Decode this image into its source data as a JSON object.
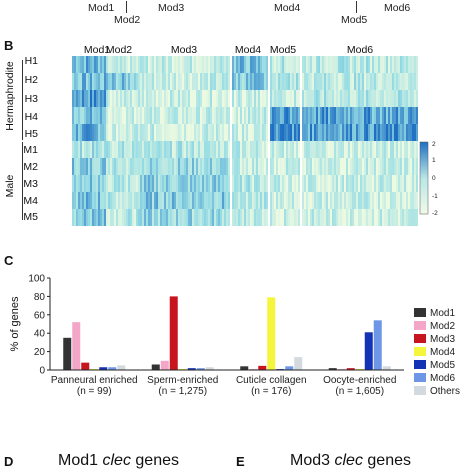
{
  "top_labels": [
    "Mod1",
    "Mod2",
    "Mod3",
    "Mod4",
    "Mod5",
    "Mod6"
  ],
  "panel_b": {
    "letter": "B",
    "modules": [
      "Mod1",
      "Mod2",
      "Mod3",
      "Mod4",
      "Mod5",
      "Mod6"
    ],
    "groups": [
      {
        "name": "Hermaphrodite",
        "rows": [
          "H1",
          "H2",
          "H3",
          "H4",
          "H5"
        ]
      },
      {
        "name": "Male",
        "rows": [
          "M1",
          "M2",
          "M3",
          "M4",
          "M5"
        ]
      }
    ],
    "colorbar_ticks": [
      "2",
      "1",
      "0",
      "-1",
      "-2"
    ],
    "colors": {
      "high": "#1e6fc2",
      "mid": "#b8e6e6",
      "low": "#f2fbe8"
    }
  },
  "chart_data": {
    "type": "bar",
    "panel_letter": "C",
    "categories": [
      "Panneural enriched",
      "Sperm-enriched",
      "Cuticle collagen",
      "Oocyte-enriched"
    ],
    "category_counts": [
      "(n = 99)",
      "(n = 1,275)",
      "(n = 176)",
      "(n = 1,605)"
    ],
    "ylabel": "% of genes",
    "ylim": [
      0,
      100
    ],
    "yticks": [
      0,
      20,
      40,
      60,
      80,
      100
    ],
    "legend_position": "right",
    "series": [
      {
        "name": "Mod1",
        "color": "#333333",
        "values": [
          35,
          6,
          4,
          2
        ]
      },
      {
        "name": "Mod2",
        "color": "#f4a6c8",
        "values": [
          52,
          10,
          1,
          1
        ]
      },
      {
        "name": "Mod3",
        "color": "#c8141e",
        "values": [
          8,
          80,
          4.5,
          2
        ]
      },
      {
        "name": "Mod4",
        "color": "#f5f53c",
        "values": [
          1,
          1,
          79,
          1
        ]
      },
      {
        "name": "Mod5",
        "color": "#1432b4",
        "values": [
          3,
          2,
          1,
          41
        ]
      },
      {
        "name": "Mod6",
        "color": "#6e96e6",
        "values": [
          3,
          2,
          4,
          54
        ]
      },
      {
        "name": "Others",
        "color": "#d2dae0",
        "values": [
          5,
          3,
          14,
          4
        ]
      }
    ]
  },
  "footer": {
    "d_letter": "D",
    "d_title_prefix": "Mod1",
    "d_title_italic": "clec",
    "d_title_suffix": "genes",
    "e_letter": "E",
    "e_title_prefix": "Mod3",
    "e_title_italic": "clec",
    "e_title_suffix": "genes"
  }
}
